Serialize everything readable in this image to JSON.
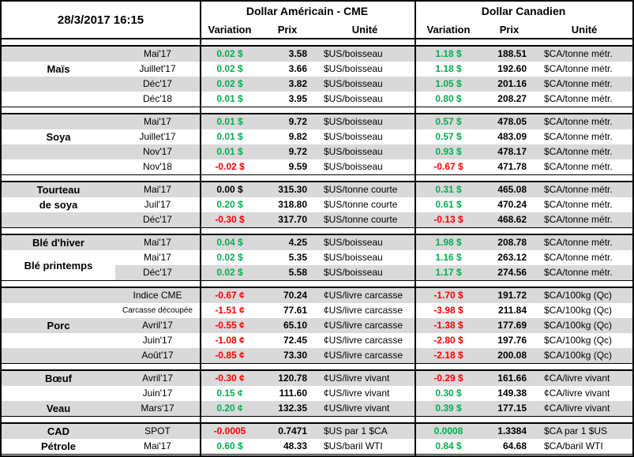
{
  "header": {
    "datetime": "28/3/2017 16:15",
    "us_block_title": "Dollar Américain - CME",
    "ca_block_title": "Dollar Canadien",
    "columns": {
      "variation": "Variation",
      "prix": "Prix",
      "unite": "Unité"
    }
  },
  "colors": {
    "positive": "#00B050",
    "negative": "#FF0000",
    "neutral": "#000000",
    "stripe_row": "#D9D9D9",
    "border": "#000000"
  },
  "sections": [
    {
      "id": "mais",
      "rows": [
        {
          "label": "",
          "month": "Mai'17",
          "us": {
            "var": "0.02 $",
            "color": "green",
            "prix": "3.58",
            "unit": "$US/boisseau"
          },
          "ca": {
            "var": "1.18 $",
            "color": "green",
            "prix": "188.51",
            "unit": "$CA/tonne métr."
          }
        },
        {
          "label": "Maïs",
          "month": "Juillet'17",
          "us": {
            "var": "0.02 $",
            "color": "green",
            "prix": "3.66",
            "unit": "$US/boisseau"
          },
          "ca": {
            "var": "1.18 $",
            "color": "green",
            "prix": "192.60",
            "unit": "$CA/tonne métr."
          }
        },
        {
          "label": "",
          "month": "Déc'17",
          "us": {
            "var": "0.02 $",
            "color": "green",
            "prix": "3.82",
            "unit": "$US/boisseau"
          },
          "ca": {
            "var": "1.05 $",
            "color": "green",
            "prix": "201.16",
            "unit": "$CA/tonne métr."
          }
        },
        {
          "label": "",
          "month": "Déc'18",
          "us": {
            "var": "0.01 $",
            "color": "green",
            "prix": "3.95",
            "unit": "$US/boisseau"
          },
          "ca": {
            "var": "0.80 $",
            "color": "green",
            "prix": "208.27",
            "unit": "$CA/tonne métr."
          }
        }
      ]
    },
    {
      "id": "soya",
      "rows": [
        {
          "label": "",
          "month": "Mai'17",
          "us": {
            "var": "0.01 $",
            "color": "green",
            "prix": "9.72",
            "unit": "$US/boisseau"
          },
          "ca": {
            "var": "0.57 $",
            "color": "green",
            "prix": "478.05",
            "unit": "$CA/tonne métr."
          }
        },
        {
          "label": "Soya",
          "month": "Juillet'17",
          "us": {
            "var": "0.01 $",
            "color": "green",
            "prix": "9.82",
            "unit": "$US/boisseau"
          },
          "ca": {
            "var": "0.57 $",
            "color": "green",
            "prix": "483.09",
            "unit": "$CA/tonne métr."
          }
        },
        {
          "label": "",
          "month": "Nov'17",
          "us": {
            "var": "0.01 $",
            "color": "green",
            "prix": "9.72",
            "unit": "$US/boisseau"
          },
          "ca": {
            "var": "0.93 $",
            "color": "green",
            "prix": "478.17",
            "unit": "$CA/tonne métr."
          }
        },
        {
          "label": "",
          "month": "Nov'18",
          "us": {
            "var": "-0.02 $",
            "color": "red",
            "prix": "9.59",
            "unit": "$US/boisseau"
          },
          "ca": {
            "var": "-0.67 $",
            "color": "red",
            "prix": "471.78",
            "unit": "$CA/tonne métr."
          }
        }
      ]
    },
    {
      "id": "tourteau-de-soya",
      "rows": [
        {
          "label": "Tourteau",
          "month": "Mai'17",
          "us": {
            "var": "0.00 $",
            "color": "black",
            "prix": "315.30",
            "unit": "$US/tonne courte"
          },
          "ca": {
            "var": "0.31 $",
            "color": "green",
            "prix": "465.08",
            "unit": "$CA/tonne métr."
          }
        },
        {
          "label": "de soya",
          "month": "Juil'17",
          "us": {
            "var": "0.20 $",
            "color": "green",
            "prix": "318.80",
            "unit": "$US/tonne courte"
          },
          "ca": {
            "var": "0.61 $",
            "color": "green",
            "prix": "470.24",
            "unit": "$CA/tonne métr."
          }
        },
        {
          "label": "",
          "month": "Déc'17",
          "us": {
            "var": "-0.30 $",
            "color": "red",
            "prix": "317.70",
            "unit": "$US/tonne courte"
          },
          "ca": {
            "var": "-0.13 $",
            "color": "red",
            "prix": "468.62",
            "unit": "$CA/tonne métr."
          }
        }
      ]
    },
    {
      "id": "ble",
      "merged_label": "Blé printemps",
      "rows": [
        {
          "label": "Blé d'hiver",
          "month": "Mai'17",
          "us": {
            "var": "0.04 $",
            "color": "green",
            "prix": "4.25",
            "unit": "$US/boisseau"
          },
          "ca": {
            "var": "1.98 $",
            "color": "green",
            "prix": "208.78",
            "unit": "$CA/tonne métr."
          }
        },
        {
          "label": "",
          "month": "Mai'17",
          "us": {
            "var": "0.02 $",
            "color": "green",
            "prix": "5.35",
            "unit": "$US/boisseau"
          },
          "ca": {
            "var": "1.16 $",
            "color": "green",
            "prix": "263.12",
            "unit": "$CA/tonne métr."
          }
        },
        {
          "label": "",
          "month": "Déc'17",
          "us": {
            "var": "0.02 $",
            "color": "green",
            "prix": "5.58",
            "unit": "$US/boisseau"
          },
          "ca": {
            "var": "1.17 $",
            "color": "green",
            "prix": "274.56",
            "unit": "$CA/tonne métr."
          }
        }
      ]
    },
    {
      "id": "porc",
      "rows": [
        {
          "label": "",
          "month": "Indice CME",
          "us": {
            "var": "-0.67 ¢",
            "color": "red",
            "prix": "70.24",
            "unit": "¢US/livre carcasse"
          },
          "ca": {
            "var": "-1.70 $",
            "color": "red",
            "prix": "191.72",
            "unit": "$CA/100kg (Qc)"
          }
        },
        {
          "label": "",
          "month": "Carcasse découpée",
          "small": true,
          "us": {
            "var": "-1.51 ¢",
            "color": "red",
            "prix": "77.61",
            "unit": "¢US/livre carcasse"
          },
          "ca": {
            "var": "-3.98 $",
            "color": "red",
            "prix": "211.84",
            "unit": "$CA/100kg (Qc)"
          }
        },
        {
          "label": "Porc",
          "month": "Avril'17",
          "us": {
            "var": "-0.55 ¢",
            "color": "red",
            "prix": "65.10",
            "unit": "¢US/livre carcasse"
          },
          "ca": {
            "var": "-1.38 $",
            "color": "red",
            "prix": "177.69",
            "unit": "$CA/100kg (Qc)"
          }
        },
        {
          "label": "",
          "month": "Juin'17",
          "us": {
            "var": "-1.08 ¢",
            "color": "red",
            "prix": "72.45",
            "unit": "¢US/livre carcasse"
          },
          "ca": {
            "var": "-2.80 $",
            "color": "red",
            "prix": "197.76",
            "unit": "$CA/100kg (Qc)"
          }
        },
        {
          "label": "",
          "month": "Août'17",
          "us": {
            "var": "-0.85 ¢",
            "color": "red",
            "prix": "73.30",
            "unit": "¢US/livre carcasse"
          },
          "ca": {
            "var": "-2.18 $",
            "color": "red",
            "prix": "200.08",
            "unit": "$CA/100kg (Qc)"
          }
        }
      ]
    },
    {
      "id": "boeuf-veau",
      "rows": [
        {
          "label": "Bœuf",
          "month": "Avril'17",
          "us": {
            "var": "-0.30 ¢",
            "color": "red",
            "prix": "120.78",
            "unit": "¢US/livre vivant"
          },
          "ca": {
            "var": "-0.29 $",
            "color": "red",
            "prix": "161.66",
            "unit": "¢CA/livre vivant"
          }
        },
        {
          "label": "",
          "month": "Juin'17",
          "us": {
            "var": "0.15 ¢",
            "color": "green",
            "prix": "111.60",
            "unit": "¢US/livre vivant"
          },
          "ca": {
            "var": "0.30 $",
            "color": "green",
            "prix": "149.38",
            "unit": "¢CA/livre vivant"
          }
        },
        {
          "label": "Veau",
          "month": "Mars'17",
          "us": {
            "var": "0.20 ¢",
            "color": "green",
            "prix": "132.35",
            "unit": "¢US/livre vivant"
          },
          "ca": {
            "var": "0.39 $",
            "color": "green",
            "prix": "177.15",
            "unit": "¢CA/livre vivant"
          }
        }
      ]
    },
    {
      "id": "cad-petrole",
      "rows": [
        {
          "label": "CAD",
          "month": "SPOT",
          "us": {
            "var": "-0.0005",
            "color": "red",
            "prix": "0.7471",
            "unit": "$US par 1 $CA"
          },
          "ca": {
            "var": "0.0008",
            "color": "green",
            "prix": "1.3384",
            "unit": "$CA par 1 $US"
          }
        },
        {
          "label": "Pétrole",
          "month": "Mai'17",
          "us": {
            "var": "0.60 $",
            "color": "green",
            "prix": "48.33",
            "unit": "$US/baril WTI"
          },
          "ca": {
            "var": "0.84 $",
            "color": "green",
            "prix": "64.68",
            "unit": "$CA/baril WTI"
          }
        }
      ]
    }
  ]
}
